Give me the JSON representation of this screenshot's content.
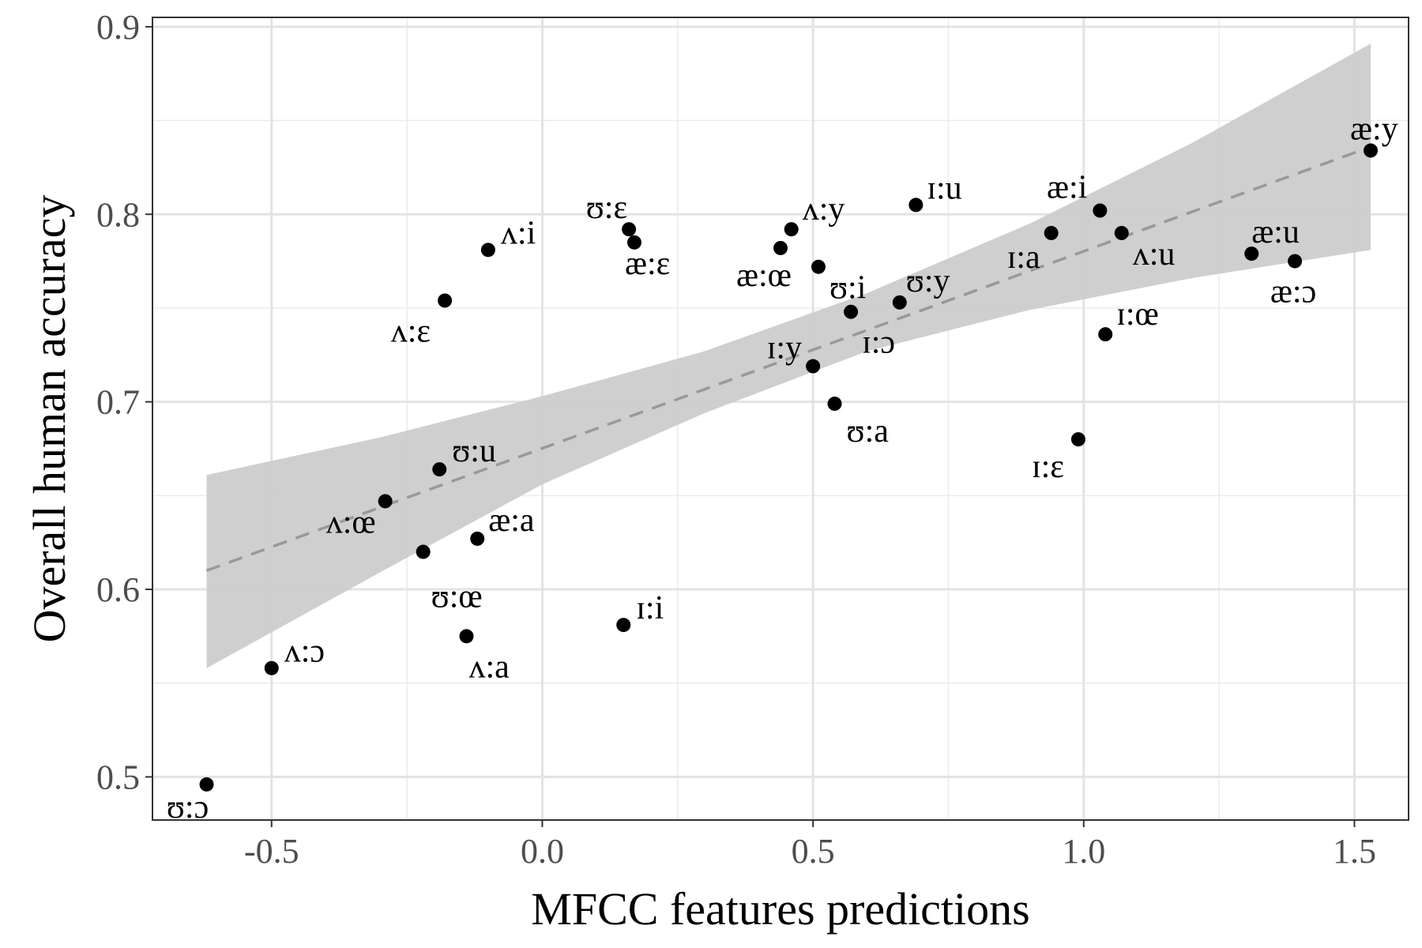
{
  "chart_data": {
    "type": "scatter",
    "title": "",
    "xlabel": "MFCC features predictions",
    "ylabel": "Overall human accuracy",
    "xlim": [
      -0.72,
      1.6
    ],
    "ylim": [
      0.477,
      0.905
    ],
    "x_ticks": [
      -0.5,
      0.0,
      0.5,
      1.0,
      1.5
    ],
    "x_tick_labels": [
      "-0.5",
      "0.0",
      "0.5",
      "1.0",
      "1.5"
    ],
    "y_ticks": [
      0.5,
      0.6,
      0.7,
      0.8,
      0.9
    ],
    "y_tick_labels": [
      "0.5",
      "0.6",
      "0.7",
      "0.8",
      "0.9"
    ],
    "grid": true,
    "theme": "bw",
    "regression": {
      "style": "dashed",
      "color": "#999999",
      "x_range": [
        -0.62,
        1.53
      ],
      "fit_y": [
        0.61,
        0.836
      ],
      "confidence_band": {
        "color": "#cccccc",
        "x": [
          -0.62,
          -0.3,
          0.0,
          0.3,
          0.6,
          0.9,
          1.2,
          1.53
        ],
        "lower": [
          0.558,
          0.609,
          0.656,
          0.694,
          0.727,
          0.749,
          0.766,
          0.781
        ],
        "upper": [
          0.661,
          0.681,
          0.703,
          0.727,
          0.758,
          0.795,
          0.838,
          0.891
        ]
      }
    },
    "points": [
      {
        "label": "ʊ:ɔ",
        "x": -0.62,
        "y": 0.496
      },
      {
        "label": "ʌ:ɔ",
        "x": -0.5,
        "y": 0.558
      },
      {
        "label": "ʌ:œ",
        "x": -0.29,
        "y": 0.647
      },
      {
        "label": "ʊ:œ",
        "x": -0.22,
        "y": 0.62
      },
      {
        "label": "ʊ:u",
        "x": -0.19,
        "y": 0.664
      },
      {
        "label": "ʌ:ɛ",
        "x": -0.18,
        "y": 0.754
      },
      {
        "label": "ʌ:a",
        "x": -0.14,
        "y": 0.575
      },
      {
        "label": "æ:a",
        "x": -0.12,
        "y": 0.627
      },
      {
        "label": "ʌ:i",
        "x": -0.1,
        "y": 0.781
      },
      {
        "label": "ɪ:i",
        "x": 0.15,
        "y": 0.581
      },
      {
        "label": "ʊ:ɛ",
        "x": 0.16,
        "y": 0.792
      },
      {
        "label": "æ:ɛ",
        "x": 0.17,
        "y": 0.785
      },
      {
        "label": "æ:œ",
        "x": 0.44,
        "y": 0.782
      },
      {
        "label": "ʌ:y",
        "x": 0.46,
        "y": 0.792
      },
      {
        "label": "ɪ:y",
        "x": 0.5,
        "y": 0.719
      },
      {
        "label": "ʊ:i",
        "x": 0.51,
        "y": 0.772
      },
      {
        "label": "ʊ:a",
        "x": 0.54,
        "y": 0.699
      },
      {
        "label": "ɪ:ɔ",
        "x": 0.57,
        "y": 0.748
      },
      {
        "label": "ʊ:y",
        "x": 0.66,
        "y": 0.753
      },
      {
        "label": "ɪ:u",
        "x": 0.69,
        "y": 0.805
      },
      {
        "label": "ɪ:a",
        "x": 0.94,
        "y": 0.79
      },
      {
        "label": "ɪ:ɛ",
        "x": 0.99,
        "y": 0.68
      },
      {
        "label": "æ:i",
        "x": 1.03,
        "y": 0.802
      },
      {
        "label": "ɪ:œ",
        "x": 1.04,
        "y": 0.736
      },
      {
        "label": "ʌ:u",
        "x": 1.07,
        "y": 0.79
      },
      {
        "label": "æ:u",
        "x": 1.31,
        "y": 0.779
      },
      {
        "label": "æ:ɔ",
        "x": 1.39,
        "y": 0.775
      },
      {
        "label": "æ:y",
        "x": 1.53,
        "y": 0.834
      }
    ]
  }
}
